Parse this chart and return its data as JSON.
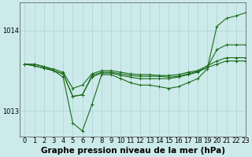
{
  "background_color": "#cceaea",
  "grid_color": "#aad4d4",
  "line_color": "#1a6b1a",
  "xlabel": "Graphe pression niveau de la mer (hPa)",
  "xlabel_fontsize": 7.5,
  "tick_fontsize": 6,
  "xlim": [
    -0.5,
    23
  ],
  "ylim": [
    1012.68,
    1014.35
  ],
  "yticks": [
    1013,
    1014
  ],
  "xticks": [
    0,
    1,
    2,
    3,
    4,
    5,
    6,
    7,
    8,
    9,
    10,
    11,
    12,
    13,
    14,
    15,
    16,
    17,
    18,
    19,
    20,
    21,
    22,
    23
  ],
  "hours": [
    0,
    1,
    2,
    3,
    4,
    5,
    6,
    7,
    8,
    9,
    10,
    11,
    12,
    13,
    14,
    15,
    16,
    17,
    18,
    19,
    20,
    21,
    22,
    23
  ],
  "line1": [
    1013.58,
    1013.58,
    1013.55,
    1013.5,
    1013.42,
    1012.85,
    1012.75,
    1013.08,
    1013.45,
    1013.45,
    1013.4,
    1013.35,
    1013.32,
    1013.32,
    1013.3,
    1013.28,
    1013.3,
    1013.35,
    1013.4,
    1013.52,
    1014.05,
    1014.15,
    1014.18,
    1014.22
  ],
  "line2": [
    1013.58,
    1013.58,
    1013.55,
    1013.52,
    1013.48,
    1013.28,
    1013.32,
    1013.46,
    1013.5,
    1013.5,
    1013.48,
    1013.46,
    1013.45,
    1013.45,
    1013.44,
    1013.44,
    1013.45,
    1013.48,
    1013.5,
    1013.56,
    1013.62,
    1013.66,
    1013.66,
    1013.66
  ],
  "line3": [
    1013.58,
    1013.56,
    1013.53,
    1013.5,
    1013.46,
    1013.18,
    1013.2,
    1013.44,
    1013.48,
    1013.48,
    1013.46,
    1013.44,
    1013.43,
    1013.43,
    1013.43,
    1013.42,
    1013.43,
    1013.46,
    1013.49,
    1013.54,
    1013.76,
    1013.82,
    1013.82,
    1013.82
  ],
  "line4": [
    1013.58,
    1013.56,
    1013.53,
    1013.5,
    1013.46,
    1013.18,
    1013.2,
    1013.42,
    1013.47,
    1013.47,
    1013.44,
    1013.42,
    1013.4,
    1013.4,
    1013.4,
    1013.4,
    1013.42,
    1013.45,
    1013.48,
    1013.54,
    1013.58,
    1013.62,
    1013.62,
    1013.62
  ]
}
